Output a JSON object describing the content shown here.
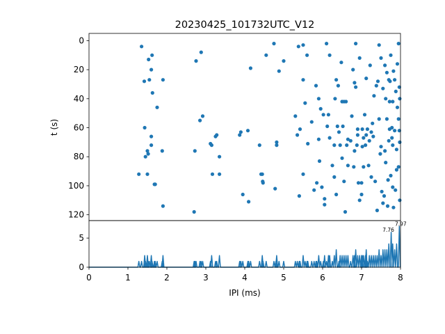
{
  "figure": {
    "title": "20230425_101732UTC_V12"
  },
  "colors": {
    "marker": "#1f77b4",
    "axes": "#000000",
    "background": "#ffffff"
  },
  "chart_data": [
    {
      "type": "scatter",
      "title": "20230425_101732UTC_V12",
      "xlabel": "",
      "ylabel": "t (s)",
      "xlim": [
        0,
        8
      ],
      "ylim": [
        124,
        -5
      ],
      "y_inverted": true,
      "yticks": [
        0,
        20,
        40,
        60,
        80,
        100,
        120
      ],
      "xticks_shown": false,
      "grid": false,
      "points": [
        [
          1.28,
          92
        ],
        [
          1.35,
          4
        ],
        [
          1.42,
          28
        ],
        [
          1.43,
          60
        ],
        [
          1.45,
          80
        ],
        [
          1.5,
          92
        ],
        [
          1.5,
          76
        ],
        [
          1.52,
          78
        ],
        [
          1.53,
          13
        ],
        [
          1.55,
          27
        ],
        [
          1.6,
          20
        ],
        [
          1.6,
          66
        ],
        [
          1.6,
          72
        ],
        [
          1.62,
          10
        ],
        [
          1.63,
          36
        ],
        [
          1.68,
          99
        ],
        [
          1.7,
          99
        ],
        [
          1.75,
          46
        ],
        [
          1.88,
          76
        ],
        [
          1.9,
          27
        ],
        [
          1.9,
          114
        ],
        [
          2.7,
          118
        ],
        [
          2.72,
          76
        ],
        [
          2.75,
          14
        ],
        [
          2.85,
          55
        ],
        [
          2.88,
          8
        ],
        [
          2.92,
          52
        ],
        [
          3.12,
          71
        ],
        [
          3.15,
          72
        ],
        [
          3.17,
          92
        ],
        [
          3.25,
          66
        ],
        [
          3.28,
          65
        ],
        [
          3.35,
          80
        ],
        [
          3.35,
          92
        ],
        [
          3.87,
          65
        ],
        [
          3.9,
          63
        ],
        [
          3.95,
          106
        ],
        [
          4.08,
          62
        ],
        [
          4.1,
          111
        ],
        [
          4.15,
          19
        ],
        [
          4.38,
          72
        ],
        [
          4.42,
          92
        ],
        [
          4.45,
          92
        ],
        [
          4.46,
          97
        ],
        [
          4.47,
          98
        ],
        [
          4.55,
          10
        ],
        [
          4.75,
          2
        ],
        [
          4.78,
          102
        ],
        [
          4.82,
          72
        ],
        [
          4.82,
          70
        ],
        [
          4.88,
          21
        ],
        [
          5.0,
          14
        ],
        [
          5.3,
          52
        ],
        [
          5.35,
          65
        ],
        [
          5.38,
          4
        ],
        [
          5.4,
          107
        ],
        [
          5.42,
          61
        ],
        [
          5.5,
          3
        ],
        [
          5.5,
          27
        ],
        [
          5.5,
          92
        ],
        [
          5.55,
          43
        ],
        [
          5.6,
          10
        ],
        [
          5.62,
          71
        ],
        [
          5.72,
          56
        ],
        [
          5.78,
          103
        ],
        [
          5.83,
          31
        ],
        [
          5.85,
          98
        ],
        [
          5.9,
          40
        ],
        [
          5.9,
          68
        ],
        [
          5.92,
          83
        ],
        [
          5.95,
          47
        ],
        [
          5.98,
          101
        ],
        [
          6.02,
          51
        ],
        [
          6.05,
          113
        ],
        [
          6.05,
          109
        ],
        [
          6.1,
          2
        ],
        [
          6.12,
          59
        ],
        [
          6.15,
          51
        ],
        [
          6.18,
          67
        ],
        [
          6.18,
          10
        ],
        [
          6.25,
          86
        ],
        [
          6.3,
          72
        ],
        [
          6.3,
          94
        ],
        [
          6.32,
          40
        ],
        [
          6.35,
          106
        ],
        [
          6.35,
          27
        ],
        [
          6.38,
          59
        ],
        [
          6.4,
          31
        ],
        [
          6.42,
          63
        ],
        [
          6.45,
          72
        ],
        [
          6.48,
          15
        ],
        [
          6.5,
          42
        ],
        [
          6.5,
          81
        ],
        [
          6.52,
          59
        ],
        [
          6.55,
          42
        ],
        [
          6.55,
          97
        ],
        [
          6.58,
          118
        ],
        [
          6.6,
          42
        ],
        [
          6.62,
          72
        ],
        [
          6.65,
          86
        ],
        [
          6.65,
          68
        ],
        [
          6.72,
          69
        ],
        [
          6.75,
          52
        ],
        [
          6.78,
          20
        ],
        [
          6.8,
          87
        ],
        [
          6.82,
          29
        ],
        [
          6.82,
          76
        ],
        [
          6.85,
          2
        ],
        [
          6.85,
          32
        ],
        [
          6.88,
          72
        ],
        [
          6.9,
          65
        ],
        [
          6.9,
          61
        ],
        [
          6.92,
          98
        ],
        [
          6.95,
          12
        ],
        [
          6.95,
          110
        ],
        [
          7.0,
          106
        ],
        [
          7.0,
          98
        ],
        [
          7.02,
          73
        ],
        [
          7.02,
          61
        ],
        [
          7.05,
          87
        ],
        [
          7.05,
          67
        ],
        [
          7.08,
          51
        ],
        [
          7.1,
          72
        ],
        [
          7.12,
          26
        ],
        [
          7.12,
          65
        ],
        [
          7.15,
          61
        ],
        [
          7.18,
          86
        ],
        [
          7.2,
          69
        ],
        [
          7.22,
          17
        ],
        [
          7.25,
          63
        ],
        [
          7.25,
          94
        ],
        [
          7.28,
          57
        ],
        [
          7.3,
          66
        ],
        [
          7.32,
          38
        ],
        [
          7.35,
          97
        ],
        [
          7.38,
          31
        ],
        [
          7.4,
          117
        ],
        [
          7.42,
          28
        ],
        [
          7.45,
          3
        ],
        [
          7.45,
          54
        ],
        [
          7.48,
          78
        ],
        [
          7.5,
          73
        ],
        [
          7.5,
          12
        ],
        [
          7.52,
          104
        ],
        [
          7.55,
          33
        ],
        [
          7.55,
          112
        ],
        [
          7.58,
          107
        ],
        [
          7.6,
          17
        ],
        [
          7.6,
          76
        ],
        [
          7.62,
          40
        ],
        [
          7.62,
          84
        ],
        [
          7.65,
          22
        ],
        [
          7.65,
          54
        ],
        [
          7.67,
          114
        ],
        [
          7.68,
          96
        ],
        [
          7.7,
          27
        ],
        [
          7.7,
          69
        ],
        [
          7.72,
          61
        ],
        [
          7.72,
          42
        ],
        [
          7.73,
          28
        ],
        [
          7.75,
          10
        ],
        [
          7.75,
          93
        ],
        [
          7.78,
          67
        ],
        [
          7.78,
          60
        ],
        [
          7.8,
          72
        ],
        [
          7.8,
          42
        ],
        [
          7.8,
          101
        ],
        [
          7.82,
          115
        ],
        [
          7.82,
          21
        ],
        [
          7.85,
          62
        ],
        [
          7.85,
          27
        ],
        [
          7.87,
          103
        ],
        [
          7.88,
          35
        ],
        [
          7.9,
          89
        ],
        [
          7.9,
          75
        ],
        [
          7.92,
          46
        ],
        [
          7.92,
          16
        ],
        [
          7.95,
          87
        ],
        [
          7.95,
          54
        ],
        [
          7.95,
          2
        ],
        [
          7.97,
          62
        ],
        [
          7.97,
          32
        ],
        [
          7.98,
          110
        ],
        [
          7.98,
          40
        ],
        [
          7.98,
          70
        ]
      ]
    },
    {
      "type": "line",
      "xlabel": "IPI (ms)",
      "ylabel": "",
      "xlim": [
        0,
        8
      ],
      "ylim": [
        0,
        8
      ],
      "xticks": [
        0,
        1,
        2,
        3,
        4,
        5,
        6,
        7,
        8
      ],
      "yticks": [
        0,
        5
      ],
      "grid": false,
      "peak_labels": [
        "7.76",
        "7.97"
      ],
      "peaks": [
        {
          "x": 7.76,
          "y": 6
        },
        {
          "x": 7.97,
          "y": 7
        }
      ],
      "histogram_counts": [
        [
          1.28,
          1
        ],
        [
          1.35,
          1
        ],
        [
          1.43,
          2
        ],
        [
          1.45,
          1
        ],
        [
          1.5,
          2
        ],
        [
          1.52,
          1
        ],
        [
          1.55,
          1
        ],
        [
          1.6,
          2
        ],
        [
          1.62,
          1
        ],
        [
          1.68,
          1
        ],
        [
          1.7,
          1
        ],
        [
          1.75,
          1
        ],
        [
          1.88,
          1
        ],
        [
          1.9,
          2
        ],
        [
          2.7,
          1
        ],
        [
          2.72,
          1
        ],
        [
          2.75,
          1
        ],
        [
          2.85,
          1
        ],
        [
          2.88,
          1
        ],
        [
          2.92,
          1
        ],
        [
          3.12,
          1
        ],
        [
          3.15,
          2
        ],
        [
          3.25,
          1
        ],
        [
          3.28,
          1
        ],
        [
          3.35,
          2
        ],
        [
          3.87,
          1
        ],
        [
          3.9,
          1
        ],
        [
          3.95,
          1
        ],
        [
          4.08,
          1
        ],
        [
          4.1,
          1
        ],
        [
          4.15,
          1
        ],
        [
          4.38,
          1
        ],
        [
          4.45,
          2
        ],
        [
          4.47,
          1
        ],
        [
          4.55,
          1
        ],
        [
          4.75,
          1
        ],
        [
          4.8,
          1
        ],
        [
          4.82,
          2
        ],
        [
          4.88,
          1
        ],
        [
          5.0,
          1
        ],
        [
          5.3,
          1
        ],
        [
          5.35,
          1
        ],
        [
          5.4,
          1
        ],
        [
          5.42,
          1
        ],
        [
          5.5,
          2
        ],
        [
          5.55,
          1
        ],
        [
          5.6,
          1
        ],
        [
          5.62,
          1
        ],
        [
          5.72,
          1
        ],
        [
          5.78,
          1
        ],
        [
          5.83,
          1
        ],
        [
          5.85,
          1
        ],
        [
          5.9,
          2
        ],
        [
          5.95,
          1
        ],
        [
          6.02,
          1
        ],
        [
          6.05,
          2
        ],
        [
          6.1,
          1
        ],
        [
          6.15,
          2
        ],
        [
          6.18,
          2
        ],
        [
          6.25,
          1
        ],
        [
          6.3,
          2
        ],
        [
          6.35,
          3
        ],
        [
          6.42,
          1
        ],
        [
          6.45,
          2
        ],
        [
          6.5,
          2
        ],
        [
          6.55,
          2
        ],
        [
          6.6,
          2
        ],
        [
          6.65,
          2
        ],
        [
          6.72,
          1
        ],
        [
          6.78,
          2
        ],
        [
          6.82,
          2
        ],
        [
          6.85,
          3
        ],
        [
          6.9,
          2
        ],
        [
          6.95,
          2
        ],
        [
          7.0,
          2
        ],
        [
          7.02,
          2
        ],
        [
          7.05,
          2
        ],
        [
          7.1,
          2
        ],
        [
          7.12,
          3
        ],
        [
          7.15,
          1
        ],
        [
          7.2,
          2
        ],
        [
          7.25,
          2
        ],
        [
          7.3,
          2
        ],
        [
          7.35,
          2
        ],
        [
          7.4,
          2
        ],
        [
          7.45,
          3
        ],
        [
          7.5,
          2
        ],
        [
          7.55,
          3
        ],
        [
          7.6,
          3
        ],
        [
          7.65,
          3
        ],
        [
          7.7,
          4
        ],
        [
          7.76,
          6
        ],
        [
          7.8,
          4
        ],
        [
          7.85,
          3
        ],
        [
          7.9,
          4
        ],
        [
          7.97,
          7
        ]
      ]
    }
  ]
}
